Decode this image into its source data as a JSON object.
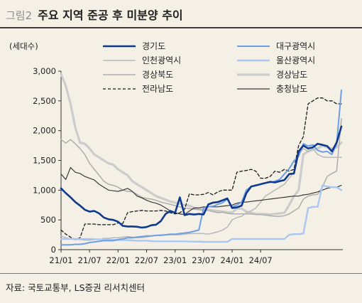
{
  "figure": {
    "label": "그림2",
    "title": "주요 지역 준공 후 미분양 추이",
    "source": "자료: 국토교통부, LS증권 리서치센터"
  },
  "chart_data": {
    "type": "line",
    "ylabel": "(세대수)",
    "xlabel": "",
    "ylim": [
      0,
      3000
    ],
    "yticks": [
      0,
      500,
      1000,
      1500,
      2000,
      2500,
      3000
    ],
    "ytick_labels": [
      "0",
      "500",
      "1,000",
      "1,500",
      "2,000",
      "2,500",
      "3,000"
    ],
    "xtick_labels": [
      "21/01",
      "21/07",
      "22/01",
      "22/07",
      "23/01",
      "23/07",
      "24/01",
      "24/07"
    ],
    "x_start": "21/01",
    "x_end": "24/12",
    "grid": false,
    "legend_position": "top",
    "series": [
      {
        "name": "경기도",
        "color": "#0d3a8c",
        "width": 2.6,
        "dash": "",
        "values": [
          1030,
          950,
          880,
          800,
          740,
          670,
          640,
          650,
          610,
          540,
          510,
          500,
          470,
          400,
          390,
          390,
          385,
          370,
          380,
          410,
          420,
          480,
          600,
          650,
          620,
          880,
          580,
          600,
          590,
          600,
          590,
          760,
          790,
          800,
          830,
          860,
          700,
          710,
          740,
          950,
          1060,
          1080,
          1100,
          1120,
          1140,
          1130,
          1150,
          1170,
          1270,
          1280,
          1650,
          1750,
          1700,
          1720,
          1780,
          1760,
          1740,
          1650,
          1800,
          2070
        ]
      },
      {
        "name": "대구광역시",
        "color": "#6d9de6",
        "width": 2.0,
        "dash": "",
        "values": [
          80,
          80,
          80,
          90,
          90,
          100,
          120,
          130,
          140,
          150,
          150,
          150,
          170,
          180,
          200,
          200,
          210,
          220,
          230,
          230,
          240,
          240,
          250,
          260,
          260,
          270,
          280,
          290,
          310,
          330,
          700,
          720,
          730,
          760,
          790,
          850,
          720,
          750,
          800,
          1000,
          1060,
          1080,
          1100,
          1120,
          1130,
          1150,
          1180,
          1270,
          1360,
          1490,
          1570,
          1780,
          1740,
          1760,
          1670,
          1640,
          1650,
          1600,
          1780,
          2680
        ]
      },
      {
        "name": "인천광역시",
        "color": "#b8b8b8",
        "width": 1.5,
        "dash": "",
        "values": [
          230,
          200,
          180,
          170,
          170,
          160,
          160,
          170,
          170,
          190,
          190,
          200,
          200,
          210,
          220,
          210,
          200,
          200,
          210,
          230,
          240,
          250,
          250,
          250,
          250,
          250,
          260,
          270,
          270,
          270,
          270,
          260,
          280,
          300,
          330,
          380,
          500,
          540,
          560,
          620,
          650,
          700,
          800,
          900,
          950,
          1000,
          1050,
          1100,
          1200,
          1300,
          1600,
          1700,
          1650,
          1700,
          1600,
          1560,
          1550,
          1550,
          1550,
          1550
        ]
      },
      {
        "name": "울산광역시",
        "color": "#a9c7f2",
        "width": 2.4,
        "dash": "",
        "values": [
          180,
          180,
          180,
          180,
          180,
          180,
          180,
          175,
          175,
          170,
          170,
          165,
          160,
          160,
          160,
          155,
          150,
          150,
          150,
          145,
          140,
          140,
          140,
          140,
          140,
          140,
          140,
          135,
          135,
          135,
          130,
          130,
          130,
          130,
          130,
          130,
          180,
          180,
          180,
          180,
          180,
          180,
          180,
          180,
          180,
          180,
          180,
          180,
          250,
          260,
          260,
          270,
          700,
          720,
          720,
          1080,
          1060,
          1050,
          1050,
          1000
        ]
      },
      {
        "name": "경상북도",
        "color": "#adadad",
        "width": 1.5,
        "dash": "",
        "values": [
          1850,
          1790,
          1850,
          1780,
          1700,
          1600,
          1450,
          1350,
          1250,
          1150,
          1100,
          1080,
          1050,
          1000,
          980,
          970,
          930,
          880,
          860,
          850,
          830,
          800,
          780,
          760,
          740,
          720,
          700,
          690,
          680,
          670,
          660,
          660,
          640,
          620,
          630,
          610,
          600,
          600,
          600,
          600,
          600,
          590,
          590,
          580,
          570,
          560,
          560,
          570,
          600,
          650,
          700,
          850,
          900,
          920,
          930,
          1050,
          1230,
          1280,
          1320,
          2200
        ]
      },
      {
        "name": "경상남도",
        "color": "#cccccc",
        "width": 3.2,
        "dash": "",
        "values": [
          2950,
          2750,
          2450,
          2050,
          1800,
          1780,
          1700,
          1600,
          1550,
          1500,
          1450,
          1430,
          1350,
          1300,
          1250,
          1150,
          1100,
          1050,
          1000,
          950,
          900,
          870,
          840,
          810,
          790,
          770,
          750,
          740,
          700,
          690,
          680,
          670,
          660,
          650,
          640,
          630,
          620,
          690,
          690,
          640,
          620,
          600,
          600,
          600,
          590,
          600,
          610,
          620,
          750,
          900,
          1000,
          1600,
          1650,
          1680,
          1700,
          1750,
          1720,
          1700,
          1720,
          1800
        ]
      },
      {
        "name": "전라남도",
        "color": "#1b1b1b",
        "width": 1.3,
        "dash": "4,3",
        "values": [
          330,
          260,
          210,
          170,
          200,
          430,
          430,
          430,
          420,
          420,
          420,
          420,
          450,
          440,
          620,
          640,
          650,
          660,
          650,
          650,
          650,
          660,
          650,
          620,
          600,
          620,
          680,
          940,
          920,
          920,
          930,
          960,
          920,
          970,
          1000,
          1000,
          1000,
          1300,
          1320,
          1330,
          1350,
          1320,
          1200,
          1200,
          1230,
          1320,
          1300,
          1350,
          1320,
          1350,
          1750,
          1900,
          2450,
          2500,
          2550,
          2550,
          2500,
          2500,
          2450,
          2450
        ]
      },
      {
        "name": "충청남도",
        "color": "#3a3a3a",
        "width": 1.2,
        "dash": "",
        "values": [
          1270,
          1180,
          1380,
          1300,
          1280,
          1230,
          1200,
          1170,
          1100,
          1050,
          1000,
          990,
          980,
          1000,
          1030,
          980,
          900,
          870,
          830,
          800,
          780,
          750,
          700,
          650,
          620,
          600,
          590,
          650,
          700,
          700,
          720,
          720,
          720,
          720,
          730,
          740,
          750,
          780,
          800,
          800,
          810,
          820,
          830,
          840,
          850,
          860,
          870,
          880,
          890,
          900,
          900,
          920,
          930,
          950,
          970,
          1000,
          1030,
          1050,
          1050,
          1080
        ]
      }
    ]
  }
}
